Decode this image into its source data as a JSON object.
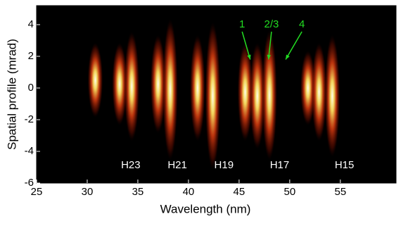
{
  "chart_data": {
    "type": "image",
    "x_label": "Wavelength (nm)",
    "y_label": "Spatial profile (mrad)",
    "xlim": [
      25,
      60.5
    ],
    "ylim": [
      -6,
      5.2
    ],
    "xticks": [
      25,
      30,
      35,
      40,
      45,
      50,
      55
    ],
    "yticks": [
      -6,
      -4,
      -2,
      0,
      2,
      4
    ],
    "background": "#000000",
    "streaks": [
      {
        "x": 30.8,
        "y": [
          -1.5,
          2.5
        ]
      },
      {
        "x": 33.2,
        "y": [
          -2,
          2.5
        ]
      },
      {
        "x": 34.4,
        "y": [
          -3,
          3.2
        ]
      },
      {
        "x": 37.0,
        "y": [
          -2.5,
          3
        ]
      },
      {
        "x": 38.2,
        "y": [
          -4.2,
          4
        ]
      },
      {
        "x": 40.9,
        "y": [
          -3,
          3
        ]
      },
      {
        "x": 42.4,
        "y": [
          -4.8,
          3.8
        ]
      },
      {
        "x": 45.6,
        "y": [
          -3,
          2.5
        ]
      },
      {
        "x": 46.8,
        "y": [
          -3.5,
          2.5
        ]
      },
      {
        "x": 48.0,
        "y": [
          -4.2,
          3.3
        ]
      },
      {
        "x": 51.8,
        "y": [
          -2,
          2
        ]
      },
      {
        "x": 52.9,
        "y": [
          -3,
          2.5
        ]
      },
      {
        "x": 54.2,
        "y": [
          -4,
          3
        ]
      }
    ],
    "labels": [
      {
        "text": "H23",
        "x": 34.3,
        "y": -4.9
      },
      {
        "text": "H21",
        "x": 38.9,
        "y": -4.9
      },
      {
        "text": "H19",
        "x": 43.5,
        "y": -4.9
      },
      {
        "text": "H17",
        "x": 49.0,
        "y": -4.9
      },
      {
        "text": "H15",
        "x": 55.4,
        "y": -4.9
      }
    ],
    "label_color": "#ffffff",
    "arrows": [
      {
        "text": "1",
        "x": 45.3,
        "y": 4.0,
        "target": [
          46.1,
          1.8
        ]
      },
      {
        "text": "2/3",
        "x": 48.2,
        "y": 4.0,
        "target": [
          47.9,
          1.8
        ]
      },
      {
        "text": "4",
        "x": 51.2,
        "y": 4.0,
        "target": [
          49.6,
          1.8
        ]
      }
    ],
    "arrow_color": "#22dd22"
  }
}
